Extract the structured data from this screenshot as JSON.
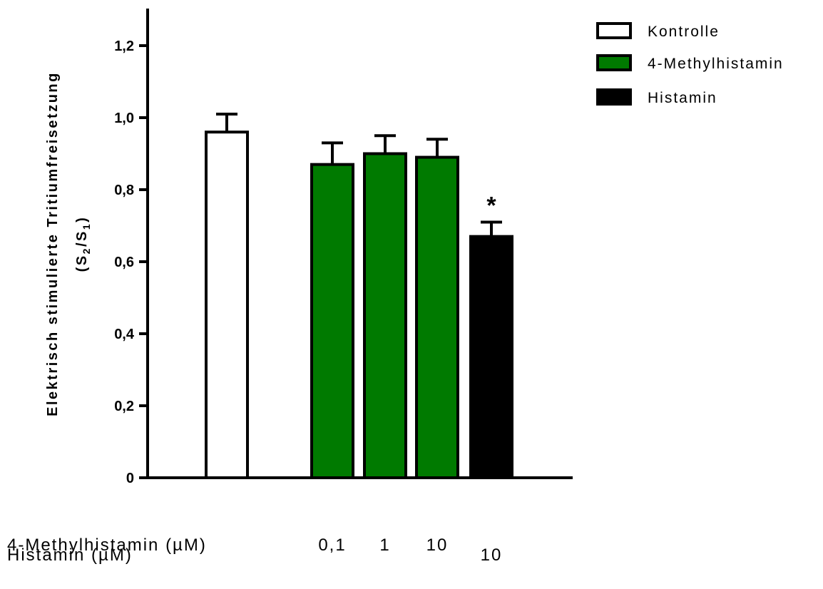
{
  "chart_data": {
    "type": "bar",
    "ylabel_line1": "Elektrisch stimulierte Tritiumfreisetzung",
    "ylabel_line2_prefix": "(S",
    "ylabel_sub_a": "2",
    "ylabel_mid": "/S",
    "ylabel_sub_b": "1",
    "ylabel_suffix": ")",
    "ylim": [
      0,
      1.3
    ],
    "yticks": [
      {
        "value": 0,
        "label": "0"
      },
      {
        "value": 0.2,
        "label": "0,2"
      },
      {
        "value": 0.4,
        "label": "0,4"
      },
      {
        "value": 0.6,
        "label": "0,6"
      },
      {
        "value": 0.8,
        "label": "0,8"
      },
      {
        "value": 1.0,
        "label": "1,0"
      },
      {
        "value": 1.2,
        "label": "1,2"
      }
    ],
    "grid": false,
    "legend_position": "top-right",
    "series_styles": [
      {
        "name": "Kontrolle",
        "color": "#ffffff"
      },
      {
        "name": "4-Methylhistamin",
        "color": "#007a00"
      },
      {
        "name": "Histamin",
        "color": "#000000"
      }
    ],
    "bars": [
      {
        "series": "Kontrolle",
        "value": 0.96,
        "error": 0.05,
        "concentration_label": "",
        "significant": false
      },
      {
        "series": "4-Methylhistamin",
        "value": 0.87,
        "error": 0.06,
        "concentration_label": "0,1",
        "significant": false
      },
      {
        "series": "4-Methylhistamin",
        "value": 0.9,
        "error": 0.05,
        "concentration_label": "1",
        "significant": false
      },
      {
        "series": "4-Methylhistamin",
        "value": 0.89,
        "error": 0.05,
        "concentration_label": "10",
        "significant": false
      },
      {
        "series": "Histamin",
        "value": 0.67,
        "error": 0.04,
        "concentration_label": "10",
        "significant": true
      }
    ],
    "significance_marker": "*",
    "dose_rows": [
      {
        "label": "4-Methylhistamin (µM)",
        "series": "4-Methylhistamin"
      },
      {
        "label": "Histamin (µM)",
        "series": "Histamin"
      }
    ]
  }
}
